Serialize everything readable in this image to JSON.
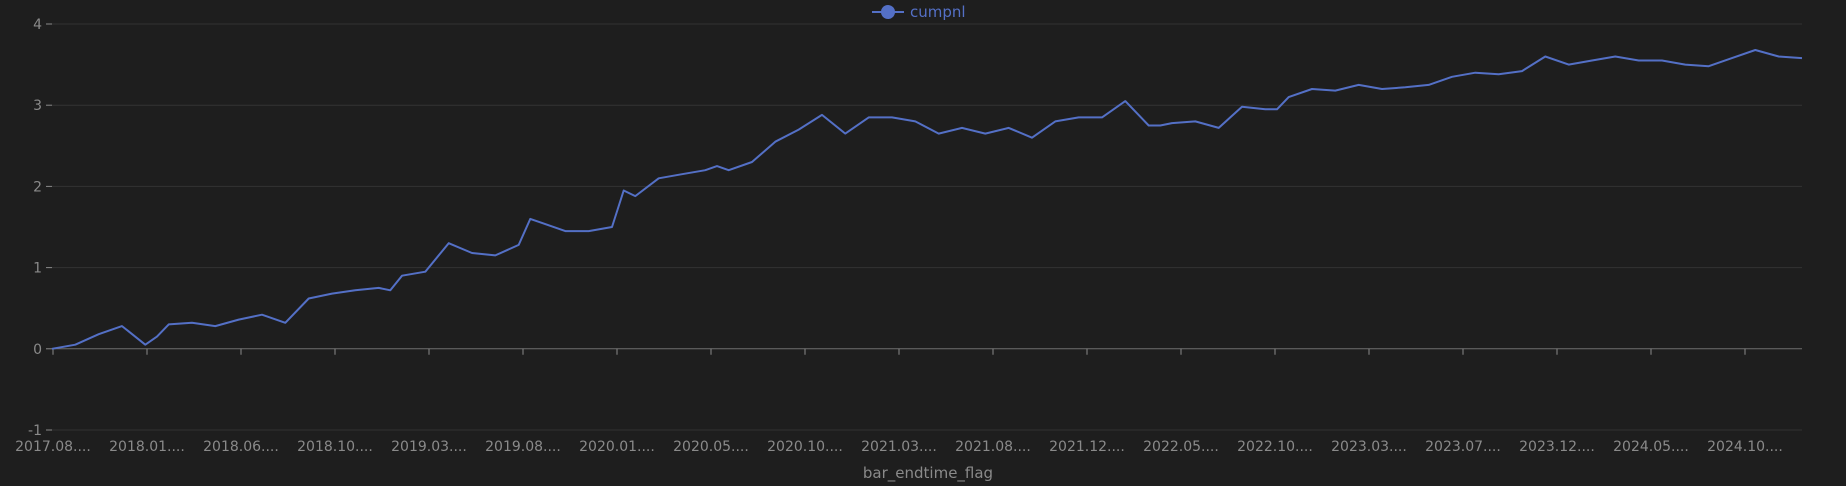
{
  "chart_data": {
    "type": "line",
    "title": "",
    "xlabel": "bar_endtime_flag",
    "ylabel": "",
    "ylim": [
      -1,
      4
    ],
    "yticks": [
      -1,
      0,
      1,
      2,
      3,
      4
    ],
    "grid": true,
    "legend_position": "top-center",
    "x_tick_labels": [
      "2017.08....",
      "2018.01....",
      "2018.06....",
      "2018.10....",
      "2019.03....",
      "2019.08....",
      "2020.01....",
      "2020.05....",
      "2020.10....",
      "2021.03....",
      "2021.08....",
      "2021.12....",
      "2022.05....",
      "2022.10....",
      "2023.03....",
      "2023.07....",
      "2023.12....",
      "2024.05....",
      "2024.10...."
    ],
    "series": [
      {
        "name": "cumpnl",
        "color": "#5470c6",
        "x": [
          2017.6,
          2017.7,
          2017.8,
          2017.9,
          2018.0,
          2018.05,
          2018.1,
          2018.2,
          2018.3,
          2018.4,
          2018.5,
          2018.6,
          2018.7,
          2018.8,
          2018.9,
          2019.0,
          2019.05,
          2019.1,
          2019.2,
          2019.3,
          2019.4,
          2019.5,
          2019.6,
          2019.65,
          2019.7,
          2019.8,
          2019.9,
          2020.0,
          2020.05,
          2020.1,
          2020.2,
          2020.3,
          2020.4,
          2020.45,
          2020.5,
          2020.6,
          2020.7,
          2020.8,
          2020.9,
          2021.0,
          2021.1,
          2021.2,
          2021.3,
          2021.4,
          2021.5,
          2021.6,
          2021.7,
          2021.8,
          2021.9,
          2022.0,
          2022.1,
          2022.2,
          2022.3,
          2022.35,
          2022.4,
          2022.5,
          2022.6,
          2022.7,
          2022.8,
          2022.85,
          2022.9,
          2023.0,
          2023.1,
          2023.2,
          2023.3,
          2023.4,
          2023.5,
          2023.6,
          2023.7,
          2023.8,
          2023.9,
          2024.0,
          2024.1,
          2024.2,
          2024.3,
          2024.4,
          2024.5,
          2024.6,
          2024.7,
          2024.8,
          2024.9,
          2025.0,
          2025.1
        ],
        "values": [
          0.0,
          0.05,
          0.18,
          0.28,
          0.05,
          0.15,
          0.3,
          0.32,
          0.28,
          0.36,
          0.42,
          0.32,
          0.62,
          0.68,
          0.72,
          0.75,
          0.72,
          0.9,
          0.95,
          1.3,
          1.18,
          1.15,
          1.28,
          1.6,
          1.55,
          1.45,
          1.45,
          1.5,
          1.95,
          1.88,
          2.1,
          2.15,
          2.2,
          2.25,
          2.2,
          2.3,
          2.55,
          2.7,
          2.88,
          2.65,
          2.85,
          2.85,
          2.8,
          2.65,
          2.72,
          2.65,
          2.72,
          2.6,
          2.8,
          2.85,
          2.85,
          3.05,
          2.75,
          2.75,
          2.78,
          2.8,
          2.72,
          2.98,
          2.95,
          2.95,
          3.1,
          3.2,
          3.18,
          3.25,
          3.2,
          3.22,
          3.25,
          3.35,
          3.4,
          3.38,
          3.42,
          3.6,
          3.5,
          3.55,
          3.6,
          3.55,
          3.55,
          3.5,
          3.48,
          3.58,
          3.68,
          3.6,
          3.58
        ]
      }
    ]
  }
}
